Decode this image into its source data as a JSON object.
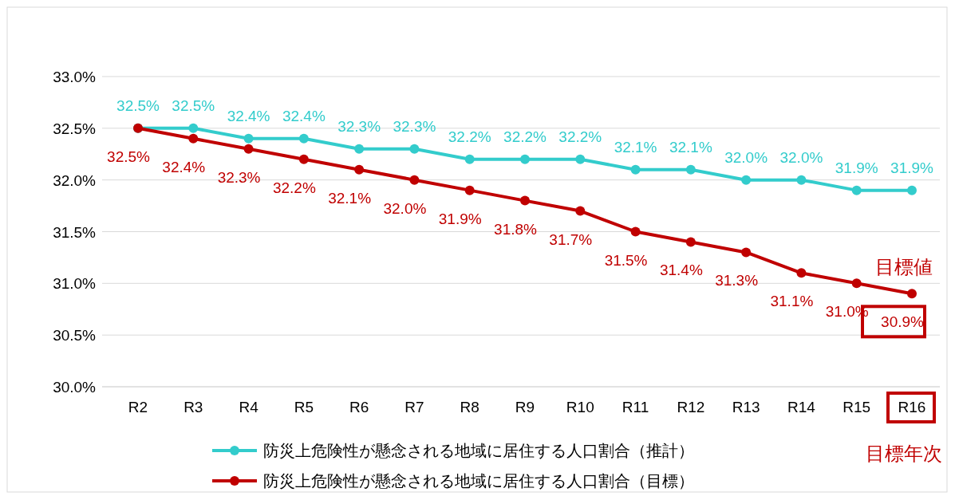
{
  "chart_data": {
    "type": "line",
    "categories": [
      "R2",
      "R3",
      "R4",
      "R5",
      "R6",
      "R7",
      "R8",
      "R9",
      "R10",
      "R11",
      "R12",
      "R13",
      "R14",
      "R15",
      "R16"
    ],
    "series": [
      {
        "name": "防災上危険性が懸念される地域に居住する人口割合（推計）",
        "color": "#33cccc",
        "values": [
          32.5,
          32.5,
          32.4,
          32.4,
          32.3,
          32.3,
          32.2,
          32.2,
          32.2,
          32.1,
          32.1,
          32.0,
          32.0,
          31.9,
          31.9
        ],
        "value_labels": [
          "32.5%",
          "32.5%",
          "32.4%",
          "32.4%",
          "32.3%",
          "32.3%",
          "32.2%",
          "32.2%",
          "32.2%",
          "32.1%",
          "32.1%",
          "32.0%",
          "32.0%",
          "31.9%",
          "31.9%"
        ]
      },
      {
        "name": "防災上危険性が懸念される地域に居住する人口割合（目標）",
        "color": "#c00000",
        "values": [
          32.5,
          32.4,
          32.3,
          32.2,
          32.1,
          32.0,
          31.9,
          31.8,
          31.7,
          31.5,
          31.4,
          31.3,
          31.1,
          31.0,
          30.9
        ],
        "value_labels": [
          "32.5%",
          "32.4%",
          "32.3%",
          "32.2%",
          "32.1%",
          "32.0%",
          "31.9%",
          "31.8%",
          "31.7%",
          "31.5%",
          "31.4%",
          "31.3%",
          "31.1%",
          "31.0%",
          "30.9%"
        ]
      }
    ],
    "ylim": [
      30.0,
      33.0
    ],
    "yticks": [
      {
        "value": 30.0,
        "label": "30.0%"
      },
      {
        "value": 30.5,
        "label": "30.5%"
      },
      {
        "value": 31.0,
        "label": "31.0%"
      },
      {
        "value": 31.5,
        "label": "31.5%"
      },
      {
        "value": 32.0,
        "label": "32.0%"
      },
      {
        "value": 32.5,
        "label": "32.5%"
      },
      {
        "value": 33.0,
        "label": "33.0%"
      }
    ],
    "grid": "y",
    "legend": "bottom",
    "marker": "circle",
    "line_style": "solid",
    "annotations": [
      {
        "text": "目標値",
        "x": "R16",
        "y": 30.9
      },
      "目標年次"
    ]
  }
}
